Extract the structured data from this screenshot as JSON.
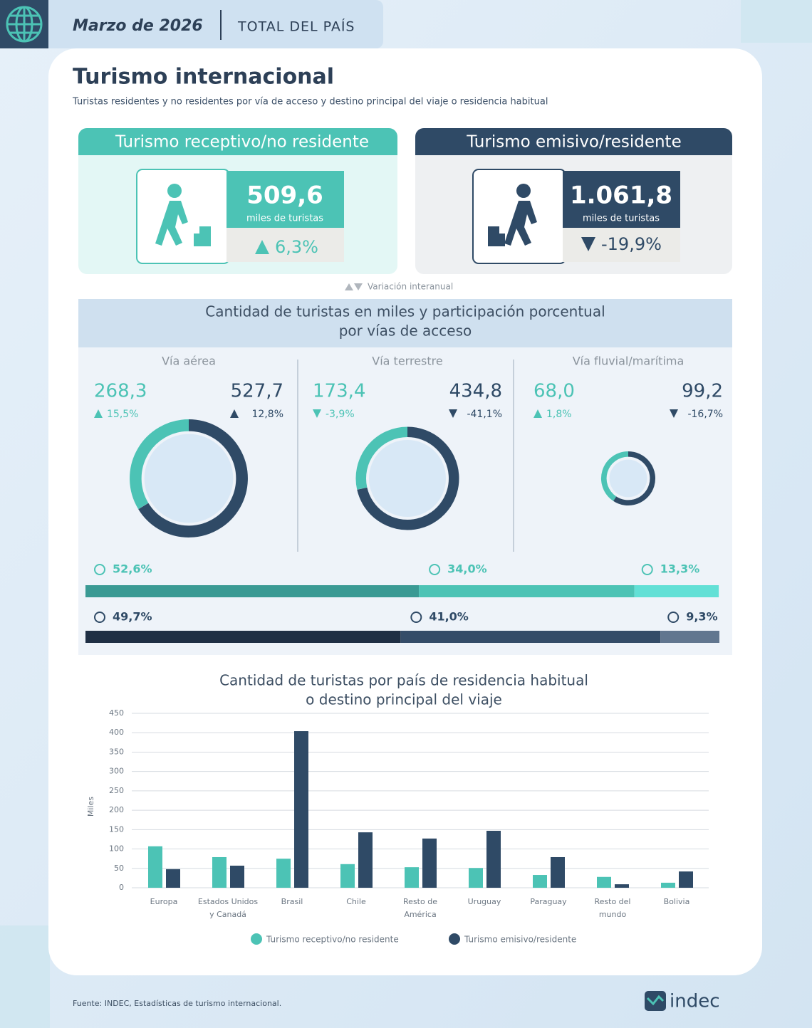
{
  "header": {
    "date": "Marzo de 2026",
    "scope": "TOTAL DEL PAÍS"
  },
  "title": "Turismo internacional",
  "subtitle": "Turistas residentes y no residentes por vía de acceso y destino principal del viaje o residencia habitual",
  "cards": [
    {
      "title": "Turismo receptivo/no residente",
      "value": "509,6",
      "unit": "miles de turistas",
      "change": {
        "value": 6.3,
        "label": "6,3%"
      }
    },
    {
      "title": "Turismo emisivo/residente",
      "value": "1.061,8",
      "unit": "miles de turistas",
      "change": {
        "value": -19.9,
        "label": "-19,9%"
      }
    }
  ],
  "variation_note": "Variación interanual",
  "access": {
    "title_lines": [
      "Cantidad de turistas en miles y participación porcentual",
      "por vías de acceso"
    ],
    "routes": [
      {
        "name": "Vía aérea",
        "receptive": {
          "value": 268.3,
          "label": "268,3"
        },
        "receptive_change": {
          "value": 15.5,
          "label": "15,5%"
        },
        "emissive": {
          "value": 527.7,
          "label": "527,7"
        },
        "emissive_change": {
          "value": 12.8,
          "label": "12,8%"
        }
      },
      {
        "name": "Vía terrestre",
        "receptive": {
          "value": 173.4,
          "label": "173,4"
        },
        "receptive_change": {
          "value": -3.9,
          "label": "-3,9%"
        },
        "emissive": {
          "value": 434.8,
          "label": "434,8"
        },
        "emissive_change": {
          "value": -41.1,
          "label": "-41,1%"
        }
      },
      {
        "name": "Vía fluvial/marítima",
        "receptive": {
          "value": 68.0,
          "label": "68,0"
        },
        "receptive_change": {
          "value": 1.8,
          "label": "1,8%"
        },
        "emissive": {
          "value": 99.2,
          "label": "99,2"
        },
        "emissive_change": {
          "value": -16.7,
          "label": "-16,7%"
        }
      }
    ],
    "share_receptive": [
      {
        "value": 52.6,
        "label": "52,6%",
        "color": "#3a9a94"
      },
      {
        "value": 34.0,
        "label": "34,0%",
        "color": "#4cc3b5"
      },
      {
        "value": 13.3,
        "label": "13,3%",
        "color": "#62e0d6"
      }
    ],
    "share_emissive": [
      {
        "value": 49.7,
        "label": "49,7%",
        "color": "#1f2f44"
      },
      {
        "value": 41.0,
        "label": "41,0%",
        "color": "#344c68"
      },
      {
        "value": 9.3,
        "label": "9,3%",
        "color": "#61768f"
      }
    ]
  },
  "chart_data": {
    "type": "bar",
    "title_lines": [
      "Cantidad de turistas por país de residencia habitual",
      "o destino principal del viaje"
    ],
    "y_label": "Miles",
    "categories": [
      "Europa",
      "Estados Unidos y Canadá",
      "Brasil",
      "Chile",
      "Resto de América",
      "Uruguay",
      "Paraguay",
      "Resto del mundo",
      "Bolivia"
    ],
    "series": [
      {
        "name": "Turismo receptivo/no residente",
        "color": "#4cc3b5",
        "values": [
          107,
          79,
          75,
          61,
          53,
          51,
          33,
          28,
          13
        ]
      },
      {
        "name": "Turismo emisivo/residente",
        "color": "#2f4a66",
        "values": [
          48,
          57,
          404,
          143,
          127,
          147,
          79,
          9,
          42
        ]
      }
    ],
    "ylim": [
      0,
      450
    ],
    "yticks": [
      0,
      50,
      100,
      150,
      200,
      250,
      300,
      350,
      400,
      450
    ],
    "grid": true
  },
  "source": "Fuente: INDEC, Estadísticas de turismo internacional.",
  "logo": "indec"
}
